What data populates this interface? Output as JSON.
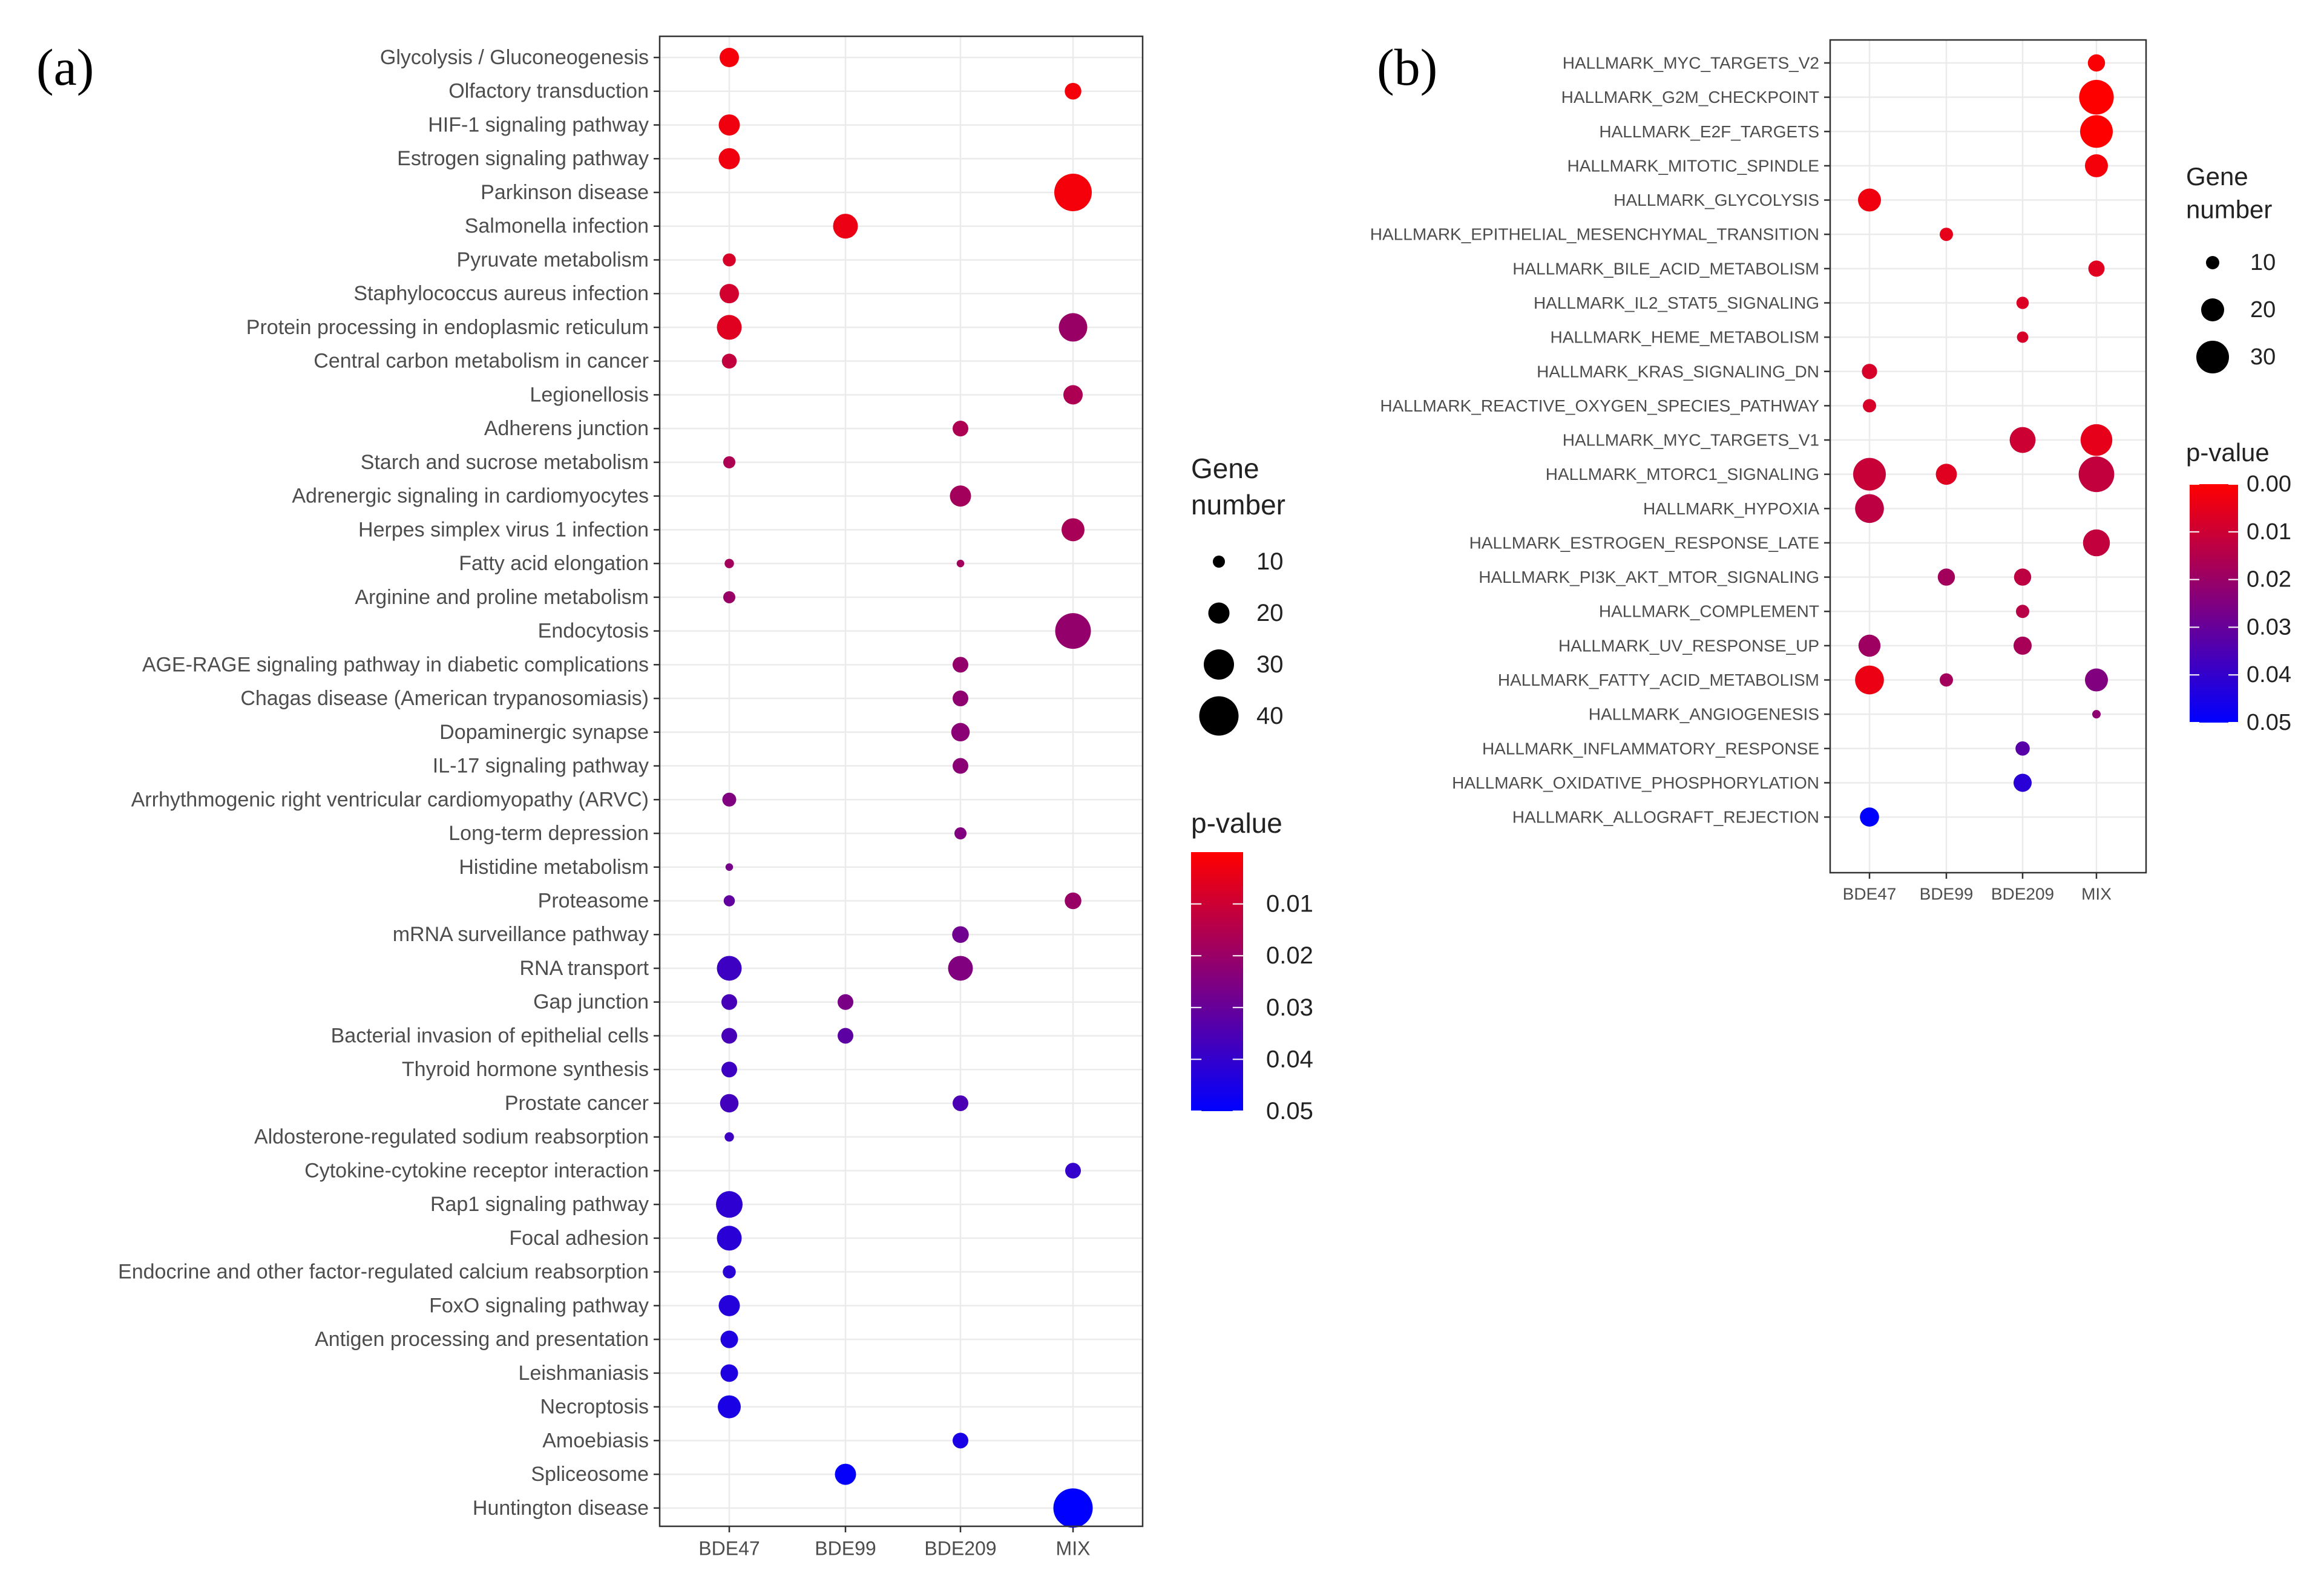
{
  "chart_data": [
    {
      "panel": "(a)",
      "type": "scatter",
      "subtype": "dot-plot",
      "x_categories": [
        "BDE47",
        "BDE99",
        "BDE209",
        "MIX"
      ],
      "y_categories": [
        "Glycolysis / Gluconeogenesis",
        "Olfactory transduction",
        "HIF-1 signaling pathway",
        "Estrogen signaling pathway",
        "Parkinson disease",
        "Salmonella infection",
        "Pyruvate metabolism",
        "Staphylococcus aureus infection",
        "Protein processing in endoplasmic reticulum",
        "Central carbon metabolism in cancer",
        "Legionellosis",
        "Adherens junction",
        "Starch and sucrose metabolism",
        "Adrenergic signaling in cardiomyocytes",
        "Herpes simplex virus 1 infection",
        "Fatty acid elongation",
        "Arginine and proline metabolism",
        "Endocytosis",
        "AGE-RAGE signaling pathway in diabetic complications",
        "Chagas disease (American trypanosomiasis)",
        "Dopaminergic synapse",
        "IL-17 signaling pathway",
        "Arrhythmogenic right ventricular cardiomyopathy (ARVC)",
        "Long-term depression",
        "Histidine metabolism",
        "Proteasome",
        "mRNA surveillance pathway",
        "RNA transport",
        "Gap junction",
        "Bacterial invasion of epithelial cells",
        "Thyroid hormone synthesis",
        "Prostate cancer",
        "Aldosterone-regulated sodium reabsorption",
        "Cytokine-cytokine receptor interaction",
        "Rap1 signaling pathway",
        "Focal adhesion",
        "Endocrine and other factor-regulated calcium reabsorption",
        "FoxO signaling pathway",
        "Antigen processing and presentation",
        "Leishmaniasis",
        "Necroptosis",
        "Amoebiasis",
        "Spliceosome",
        "Huntington disease"
      ],
      "points": [
        {
          "y": "Glycolysis / Gluconeogenesis",
          "x": "BDE47",
          "size": 18,
          "p": 0.002
        },
        {
          "y": "Olfactory transduction",
          "x": "MIX",
          "size": 15,
          "p": 0.002
        },
        {
          "y": "HIF-1 signaling pathway",
          "x": "BDE47",
          "size": 20,
          "p": 0.003
        },
        {
          "y": "Estrogen signaling pathway",
          "x": "BDE47",
          "size": 20,
          "p": 0.003
        },
        {
          "y": "Parkinson disease",
          "x": "MIX",
          "size": 38,
          "p": 0.002
        },
        {
          "y": "Salmonella infection",
          "x": "BDE99",
          "size": 24,
          "p": 0.004
        },
        {
          "y": "Pyruvate metabolism",
          "x": "BDE47",
          "size": 11,
          "p": 0.008
        },
        {
          "y": "Staphylococcus aureus infection",
          "x": "BDE47",
          "size": 18,
          "p": 0.009
        },
        {
          "y": "Protein processing in endoplasmic reticulum",
          "x": "BDE47",
          "size": 24,
          "p": 0.006
        },
        {
          "y": "Protein processing in endoplasmic reticulum",
          "x": "MIX",
          "size": 28,
          "p": 0.02
        },
        {
          "y": "Central carbon metabolism in cancer",
          "x": "BDE47",
          "size": 13,
          "p": 0.012
        },
        {
          "y": "Legionellosis",
          "x": "MIX",
          "size": 18,
          "p": 0.016
        },
        {
          "y": "Adherens junction",
          "x": "BDE209",
          "size": 14,
          "p": 0.016
        },
        {
          "y": "Starch and sucrose metabolism",
          "x": "BDE47",
          "size": 10,
          "p": 0.016
        },
        {
          "y": "Adrenergic signaling in cardiomyocytes",
          "x": "BDE209",
          "size": 20,
          "p": 0.018
        },
        {
          "y": "Herpes simplex virus 1 infection",
          "x": "MIX",
          "size": 22,
          "p": 0.017
        },
        {
          "y": "Fatty acid elongation",
          "x": "BDE47",
          "size": 7,
          "p": 0.018
        },
        {
          "y": "Fatty acid elongation",
          "x": "BDE209",
          "size": 5,
          "p": 0.018
        },
        {
          "y": "Arginine and proline metabolism",
          "x": "BDE47",
          "size": 10,
          "p": 0.02
        },
        {
          "y": "Endocytosis",
          "x": "MIX",
          "size": 36,
          "p": 0.021
        },
        {
          "y": "AGE-RAGE signaling pathway in diabetic complications",
          "x": "BDE209",
          "size": 14,
          "p": 0.021
        },
        {
          "y": "Chagas disease (American trypanosomiasis)",
          "x": "BDE209",
          "size": 14,
          "p": 0.022
        },
        {
          "y": "Dopaminergic synapse",
          "x": "BDE209",
          "size": 17,
          "p": 0.023
        },
        {
          "y": "IL-17 signaling pathway",
          "x": "BDE209",
          "size": 14,
          "p": 0.023
        },
        {
          "y": "Arrhythmogenic right ventricular cardiomyopathy (ARVC)",
          "x": "BDE47",
          "size": 12,
          "p": 0.025
        },
        {
          "y": "Long-term depression",
          "x": "BDE209",
          "size": 10,
          "p": 0.025
        },
        {
          "y": "Histidine metabolism",
          "x": "BDE47",
          "size": 5,
          "p": 0.027
        },
        {
          "y": "Proteasome",
          "x": "BDE47",
          "size": 9,
          "p": 0.031
        },
        {
          "y": "Proteasome",
          "x": "MIX",
          "size": 15,
          "p": 0.02
        },
        {
          "y": "mRNA surveillance pathway",
          "x": "BDE209",
          "size": 15,
          "p": 0.028
        },
        {
          "y": "RNA transport",
          "x": "BDE47",
          "size": 24,
          "p": 0.038
        },
        {
          "y": "RNA transport",
          "x": "BDE209",
          "size": 24,
          "p": 0.025
        },
        {
          "y": "Gap junction",
          "x": "BDE47",
          "size": 14,
          "p": 0.036
        },
        {
          "y": "Gap junction",
          "x": "BDE99",
          "size": 14,
          "p": 0.026
        },
        {
          "y": "Bacterial invasion of epithelial cells",
          "x": "BDE47",
          "size": 14,
          "p": 0.036
        },
        {
          "y": "Bacterial invasion of epithelial cells",
          "x": "BDE99",
          "size": 14,
          "p": 0.032
        },
        {
          "y": "Thyroid hormone synthesis",
          "x": "BDE47",
          "size": 14,
          "p": 0.038
        },
        {
          "y": "Prostate cancer",
          "x": "BDE47",
          "size": 17,
          "p": 0.037
        },
        {
          "y": "Prostate cancer",
          "x": "BDE209",
          "size": 14,
          "p": 0.035
        },
        {
          "y": "Aldosterone-regulated sodium reabsorption",
          "x": "BDE47",
          "size": 7,
          "p": 0.038
        },
        {
          "y": "Cytokine-cytokine receptor interaction",
          "x": "MIX",
          "size": 14,
          "p": 0.04
        },
        {
          "y": "Rap1 signaling pathway",
          "x": "BDE47",
          "size": 26,
          "p": 0.041
        },
        {
          "y": "Focal adhesion",
          "x": "BDE47",
          "size": 24,
          "p": 0.042
        },
        {
          "y": "Endocrine and other factor-regulated calcium reabsorption",
          "x": "BDE47",
          "size": 11,
          "p": 0.042
        },
        {
          "y": "FoxO signaling pathway",
          "x": "BDE47",
          "size": 20,
          "p": 0.043
        },
        {
          "y": "Antigen processing and presentation",
          "x": "BDE47",
          "size": 16,
          "p": 0.044
        },
        {
          "y": "Leishmaniasis",
          "x": "BDE47",
          "size": 16,
          "p": 0.044
        },
        {
          "y": "Necroptosis",
          "x": "BDE47",
          "size": 22,
          "p": 0.045
        },
        {
          "y": "Amoebiasis",
          "x": "BDE209",
          "size": 14,
          "p": 0.045
        },
        {
          "y": "Spliceosome",
          "x": "BDE99",
          "size": 20,
          "p": 0.049
        },
        {
          "y": "Huntington disease",
          "x": "MIX",
          "size": 40,
          "p": 0.05
        }
      ],
      "legend": {
        "size_title": "Gene\nnumber",
        "size_breaks": [
          10,
          20,
          30,
          40
        ],
        "color_title": "p-value",
        "color_labels": [
          "0.01",
          "0.02",
          "0.03",
          "0.04",
          "0.05"
        ],
        "color_low": "#ff0000",
        "color_high": "#0000ff"
      }
    },
    {
      "panel": "(b)",
      "type": "scatter",
      "subtype": "dot-plot",
      "x_categories": [
        "BDE47",
        "BDE99",
        "BDE209",
        "MIX"
      ],
      "y_categories": [
        "HALLMARK_MYC_TARGETS_V2",
        "HALLMARK_G2M_CHECKPOINT",
        "HALLMARK_E2F_TARGETS",
        "HALLMARK_MITOTIC_SPINDLE",
        "HALLMARK_GLYCOLYSIS",
        "HALLMARK_EPITHELIAL_MESENCHYMAL_TRANSITION",
        "HALLMARK_BILE_ACID_METABOLISM",
        "HALLMARK_IL2_STAT5_SIGNALING",
        "HALLMARK_HEME_METABOLISM",
        "HALLMARK_KRAS_SIGNALING_DN",
        "HALLMARK_REACTIVE_OXYGEN_SPECIES_PATHWAY",
        "HALLMARK_MYC_TARGETS_V1",
        "HALLMARK_MTORC1_SIGNALING",
        "HALLMARK_HYPOXIA",
        "HALLMARK_ESTROGEN_RESPONSE_LATE",
        "HALLMARK_PI3K_AKT_MTOR_SIGNALING",
        "HALLMARK_COMPLEMENT",
        "HALLMARK_UV_RESPONSE_UP",
        "HALLMARK_FATTY_ACID_METABOLISM",
        "HALLMARK_ANGIOGENESIS",
        "HALLMARK_INFLAMMATORY_RESPONSE",
        "HALLMARK_OXIDATIVE_PHOSPHORYLATION",
        "HALLMARK_ALLOGRAFT_REJECTION"
      ],
      "points": [
        {
          "y": "HALLMARK_MYC_TARGETS_V2",
          "x": "MIX",
          "size": 14,
          "p": 0.001
        },
        {
          "y": "HALLMARK_G2M_CHECKPOINT",
          "x": "MIX",
          "size": 32,
          "p": 0.0
        },
        {
          "y": "HALLMARK_E2F_TARGETS",
          "x": "MIX",
          "size": 30,
          "p": 0.0
        },
        {
          "y": "HALLMARK_MITOTIC_SPINDLE",
          "x": "MIX",
          "size": 20,
          "p": 0.002
        },
        {
          "y": "HALLMARK_GLYCOLYSIS",
          "x": "BDE47",
          "size": 20,
          "p": 0.003
        },
        {
          "y": "HALLMARK_EPITHELIAL_MESENCHYMAL_TRANSITION",
          "x": "BDE99",
          "size": 10,
          "p": 0.005
        },
        {
          "y": "HALLMARK_BILE_ACID_METABOLISM",
          "x": "MIX",
          "size": 13,
          "p": 0.006
        },
        {
          "y": "HALLMARK_IL2_STAT5_SIGNALING",
          "x": "BDE209",
          "size": 9,
          "p": 0.007
        },
        {
          "y": "HALLMARK_HEME_METABOLISM",
          "x": "BDE209",
          "size": 8,
          "p": 0.008
        },
        {
          "y": "HALLMARK_KRAS_SIGNALING_DN",
          "x": "BDE47",
          "size": 12,
          "p": 0.008
        },
        {
          "y": "HALLMARK_REACTIVE_OXYGEN_SPECIES_PATHWAY",
          "x": "BDE47",
          "size": 10,
          "p": 0.008
        },
        {
          "y": "HALLMARK_MYC_TARGETS_V1",
          "x": "BDE209",
          "size": 23,
          "p": 0.01
        },
        {
          "y": "HALLMARK_MYC_TARGETS_V1",
          "x": "MIX",
          "size": 29,
          "p": 0.005
        },
        {
          "y": "HALLMARK_MTORC1_SIGNALING",
          "x": "BDE47",
          "size": 30,
          "p": 0.011
        },
        {
          "y": "HALLMARK_MTORC1_SIGNALING",
          "x": "BDE99",
          "size": 18,
          "p": 0.006
        },
        {
          "y": "HALLMARK_MTORC1_SIGNALING",
          "x": "MIX",
          "size": 33,
          "p": 0.012
        },
        {
          "y": "HALLMARK_HYPOXIA",
          "x": "BDE47",
          "size": 26,
          "p": 0.013
        },
        {
          "y": "HALLMARK_ESTROGEN_RESPONSE_LATE",
          "x": "MIX",
          "size": 24,
          "p": 0.012
        },
        {
          "y": "HALLMARK_PI3K_AKT_MTOR_SIGNALING",
          "x": "BDE99",
          "size": 14,
          "p": 0.018
        },
        {
          "y": "HALLMARK_PI3K_AKT_MTOR_SIGNALING",
          "x": "BDE209",
          "size": 14,
          "p": 0.013
        },
        {
          "y": "HALLMARK_COMPLEMENT",
          "x": "BDE209",
          "size": 10,
          "p": 0.014
        },
        {
          "y": "HALLMARK_UV_RESPONSE_UP",
          "x": "BDE47",
          "size": 19,
          "p": 0.019
        },
        {
          "y": "HALLMARK_UV_RESPONSE_UP",
          "x": "BDE209",
          "size": 15,
          "p": 0.017
        },
        {
          "y": "HALLMARK_FATTY_ACID_METABOLISM",
          "x": "BDE47",
          "size": 26,
          "p": 0.004
        },
        {
          "y": "HALLMARK_FATTY_ACID_METABOLISM",
          "x": "BDE99",
          "size": 10,
          "p": 0.018
        },
        {
          "y": "HALLMARK_FATTY_ACID_METABOLISM",
          "x": "MIX",
          "size": 20,
          "p": 0.025
        },
        {
          "y": "HALLMARK_ANGIOGENESIS",
          "x": "MIX",
          "size": 5,
          "p": 0.022
        },
        {
          "y": "HALLMARK_INFLAMMATORY_RESPONSE",
          "x": "BDE209",
          "size": 11,
          "p": 0.033
        },
        {
          "y": "HALLMARK_OXIDATIVE_PHOSPHORYLATION",
          "x": "BDE209",
          "size": 15,
          "p": 0.042
        },
        {
          "y": "HALLMARK_ALLOGRAFT_REJECTION",
          "x": "BDE47",
          "size": 16,
          "p": 0.05
        }
      ],
      "legend": {
        "size_title": "Gene\nnumber",
        "size_breaks": [
          10,
          20,
          30
        ],
        "color_title": "p-value",
        "color_labels": [
          "0.00",
          "0.01",
          "0.02",
          "0.03",
          "0.04",
          "0.05"
        ],
        "color_low": "#ff0000",
        "color_high": "#0000ff"
      }
    }
  ]
}
